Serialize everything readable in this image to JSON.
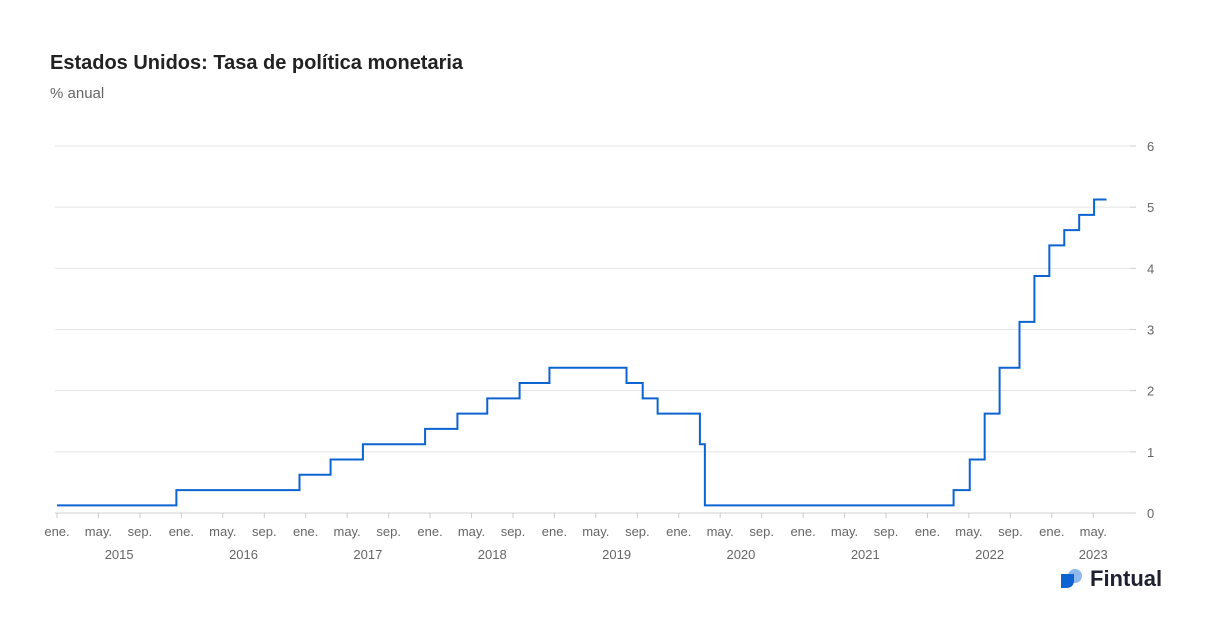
{
  "chart_data": {
    "type": "line",
    "title": "Estados Unidos: Tasa de política monetaria",
    "subtitle": "% anual",
    "ylim": [
      0,
      6
    ],
    "yticks": [
      "0",
      "1",
      "2",
      "3",
      "4",
      "5",
      "6"
    ],
    "xlim": [
      2015.0,
      2023.5
    ],
    "month_labels": [
      {
        "label": "ene.",
        "x": 2015.0
      },
      {
        "label": "may.",
        "x": 2015.333
      },
      {
        "label": "sep.",
        "x": 2015.667
      },
      {
        "label": "ene.",
        "x": 2016.0
      },
      {
        "label": "may.",
        "x": 2016.333
      },
      {
        "label": "sep.",
        "x": 2016.667
      },
      {
        "label": "ene.",
        "x": 2017.0
      },
      {
        "label": "may.",
        "x": 2017.333
      },
      {
        "label": "sep.",
        "x": 2017.667
      },
      {
        "label": "ene.",
        "x": 2018.0
      },
      {
        "label": "may.",
        "x": 2018.333
      },
      {
        "label": "sep.",
        "x": 2018.667
      },
      {
        "label": "ene.",
        "x": 2019.0
      },
      {
        "label": "may.",
        "x": 2019.333
      },
      {
        "label": "sep.",
        "x": 2019.667
      },
      {
        "label": "ene.",
        "x": 2020.0
      },
      {
        "label": "may.",
        "x": 2020.333
      },
      {
        "label": "sep.",
        "x": 2020.667
      },
      {
        "label": "ene.",
        "x": 2021.0
      },
      {
        "label": "may.",
        "x": 2021.333
      },
      {
        "label": "sep.",
        "x": 2021.667
      },
      {
        "label": "ene.",
        "x": 2022.0
      },
      {
        "label": "may.",
        "x": 2022.333
      },
      {
        "label": "sep.",
        "x": 2022.667
      },
      {
        "label": "ene.",
        "x": 2023.0
      },
      {
        "label": "may.",
        "x": 2023.333
      }
    ],
    "year_labels": [
      {
        "label": "2015",
        "x": 2015.5
      },
      {
        "label": "2016",
        "x": 2016.5
      },
      {
        "label": "2017",
        "x": 2017.5
      },
      {
        "label": "2018",
        "x": 2018.5
      },
      {
        "label": "2019",
        "x": 2019.5
      },
      {
        "label": "2020",
        "x": 2020.5
      },
      {
        "label": "2021",
        "x": 2021.5
      },
      {
        "label": "2022",
        "x": 2022.5
      },
      {
        "label": "2023",
        "x": 2023.333
      }
    ],
    "series": [
      {
        "name": "Tasa de política monetaria",
        "color": "#0d63d0",
        "step_points": [
          {
            "x": 2015.0,
            "y": 0.125
          },
          {
            "x": 2015.96,
            "y": 0.375
          },
          {
            "x": 2016.95,
            "y": 0.625
          },
          {
            "x": 2017.2,
            "y": 0.875
          },
          {
            "x": 2017.46,
            "y": 1.125
          },
          {
            "x": 2017.96,
            "y": 1.375
          },
          {
            "x": 2018.22,
            "y": 1.625
          },
          {
            "x": 2018.46,
            "y": 1.875
          },
          {
            "x": 2018.72,
            "y": 2.125
          },
          {
            "x": 2018.96,
            "y": 2.375
          },
          {
            "x": 2019.58,
            "y": 2.125
          },
          {
            "x": 2019.71,
            "y": 1.875
          },
          {
            "x": 2019.83,
            "y": 1.625
          },
          {
            "x": 2020.17,
            "y": 1.125
          },
          {
            "x": 2020.21,
            "y": 0.125
          },
          {
            "x": 2022.21,
            "y": 0.375
          },
          {
            "x": 2022.34,
            "y": 0.875
          },
          {
            "x": 2022.46,
            "y": 1.625
          },
          {
            "x": 2022.58,
            "y": 2.375
          },
          {
            "x": 2022.74,
            "y": 3.125
          },
          {
            "x": 2022.86,
            "y": 3.875
          },
          {
            "x": 2022.98,
            "y": 4.375
          },
          {
            "x": 2023.1,
            "y": 4.625
          },
          {
            "x": 2023.22,
            "y": 4.875
          },
          {
            "x": 2023.34,
            "y": 5.125
          },
          {
            "x": 2023.44,
            "y": 5.125
          }
        ]
      }
    ]
  },
  "brand": {
    "name": "Fintual",
    "logo_colors": [
      "#0d63d0",
      "#8fb8ee"
    ]
  }
}
